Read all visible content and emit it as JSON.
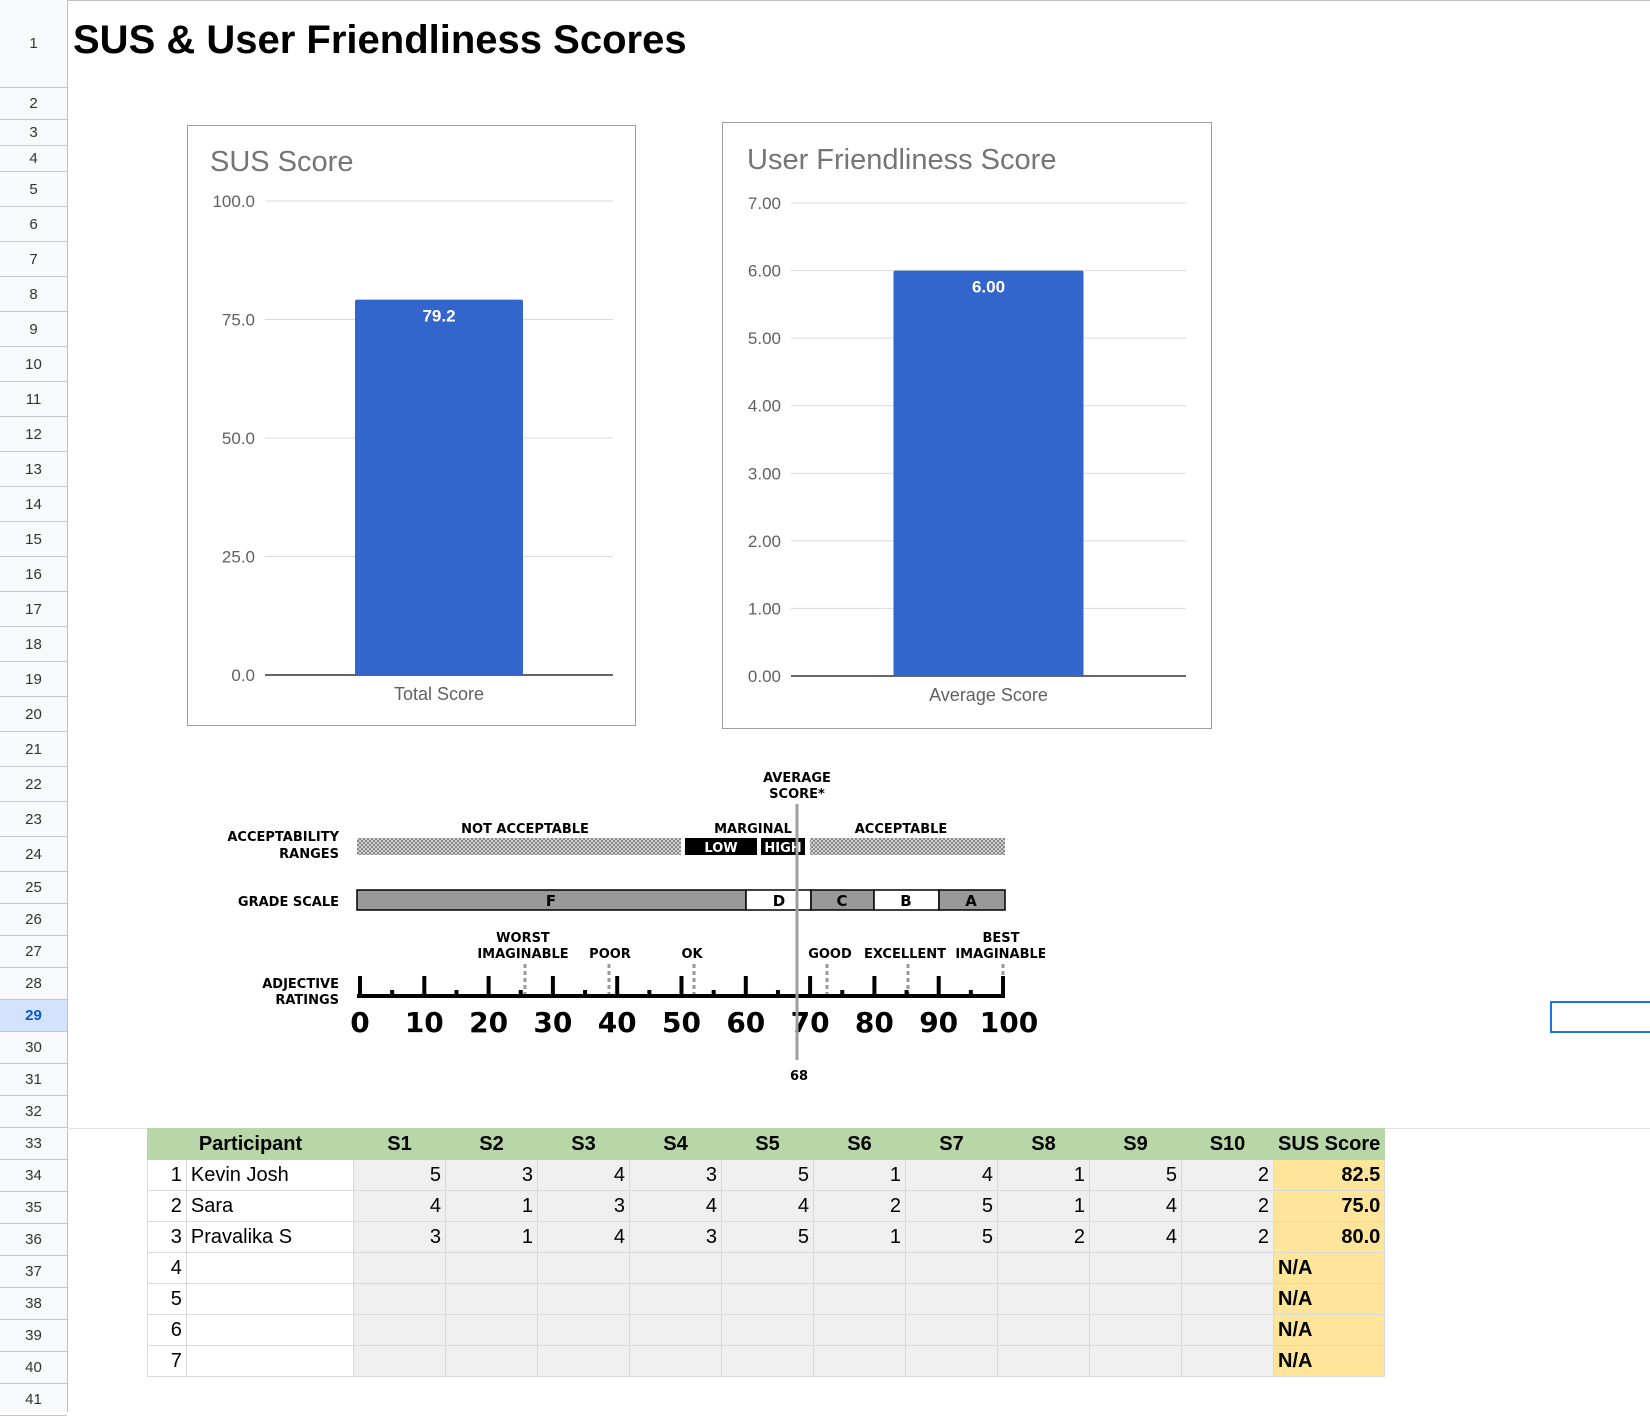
{
  "sheet": {
    "title": "SUS & User Friendliness Scores",
    "row_numbers": [
      "1",
      "2",
      "3",
      "4",
      "5",
      "6",
      "7",
      "8",
      "9",
      "10",
      "11",
      "12",
      "13",
      "14",
      "15",
      "16",
      "17",
      "18",
      "19",
      "20",
      "21",
      "22",
      "23",
      "24",
      "25",
      "26",
      "27",
      "28",
      "29",
      "30",
      "31",
      "32",
      "33",
      "34",
      "35",
      "36",
      "37",
      "38",
      "39",
      "40",
      "41"
    ],
    "selected_row": "29"
  },
  "chart_data": [
    {
      "type": "bar",
      "title": "SUS Score",
      "categories": [
        "Total Score"
      ],
      "values": [
        79.2
      ],
      "data_labels": [
        "79.2"
      ],
      "ylim": [
        0,
        100
      ],
      "yticks": [
        "0.0",
        "25.0",
        "50.0",
        "75.0",
        "100.0"
      ],
      "xlabel": "",
      "ylabel": "",
      "bar_color": "#3366cc",
      "grid": true,
      "legend": "none"
    },
    {
      "type": "bar",
      "title": "User Friendliness Score",
      "categories": [
        "Average Score"
      ],
      "values": [
        6.0
      ],
      "data_labels": [
        "6.00"
      ],
      "ylim": [
        0,
        7
      ],
      "yticks": [
        "0.00",
        "1.00",
        "2.00",
        "3.00",
        "4.00",
        "5.00",
        "6.00",
        "7.00"
      ],
      "xlabel": "",
      "ylabel": "",
      "bar_color": "#3366cc",
      "grid": true,
      "legend": "none"
    }
  ],
  "sus_scale": {
    "average_label_1": "AVERAGE",
    "average_label_2": "SCORE*",
    "average_value": "68",
    "acceptability_1": "ACCEPTABILITY",
    "acceptability_2": "RANGES",
    "not_acceptable": "NOT ACCEPTABLE",
    "marginal": "MARGINAL",
    "low": "LOW",
    "high": "HIGH",
    "acceptable": "ACCEPTABLE",
    "grade_scale": "GRADE SCALE",
    "grades": [
      "F",
      "D",
      "C",
      "B",
      "A"
    ],
    "adjective_1": "ADJECTIVE",
    "adjective_2": "RATINGS",
    "adj_worst_1": "WORST",
    "adj_worst_2": "IMAGINABLE",
    "adj_poor": "POOR",
    "adj_ok": "OK",
    "adj_good": "GOOD",
    "adj_excellent": "EXCELLENT",
    "adj_best_1": "BEST",
    "adj_best_2": "IMAGINABLE",
    "ticks": [
      "0",
      "10",
      "20",
      "30",
      "40",
      "50",
      "60",
      "70",
      "80",
      "90",
      "100"
    ]
  },
  "table": {
    "headers": [
      "Participant",
      "S1",
      "S2",
      "S3",
      "S4",
      "S5",
      "S6",
      "S7",
      "S8",
      "S9",
      "S10",
      "SUS Score"
    ],
    "rows": [
      {
        "idx": "1",
        "name": "Kevin Josh",
        "s": [
          "5",
          "3",
          "4",
          "3",
          "5",
          "1",
          "4",
          "1",
          "5",
          "2"
        ],
        "score": "82.5"
      },
      {
        "idx": "2",
        "name": "Sara",
        "s": [
          "4",
          "1",
          "3",
          "4",
          "4",
          "2",
          "5",
          "1",
          "4",
          "2"
        ],
        "score": "75.0"
      },
      {
        "idx": "3",
        "name": "Pravalika S",
        "s": [
          "3",
          "1",
          "4",
          "3",
          "5",
          "1",
          "5",
          "2",
          "4",
          "2"
        ],
        "score": "80.0"
      },
      {
        "idx": "4",
        "name": "",
        "s": [
          "",
          "",
          "",
          "",
          "",
          "",
          "",
          "",
          "",
          ""
        ],
        "score": "N/A"
      },
      {
        "idx": "5",
        "name": "",
        "s": [
          "",
          "",
          "",
          "",
          "",
          "",
          "",
          "",
          "",
          ""
        ],
        "score": "N/A"
      },
      {
        "idx": "6",
        "name": "",
        "s": [
          "",
          "",
          "",
          "",
          "",
          "",
          "",
          "",
          "",
          ""
        ],
        "score": "N/A"
      },
      {
        "idx": "7",
        "name": "",
        "s": [
          "",
          "",
          "",
          "",
          "",
          "",
          "",
          "",
          "",
          ""
        ],
        "score": "N/A"
      }
    ]
  }
}
